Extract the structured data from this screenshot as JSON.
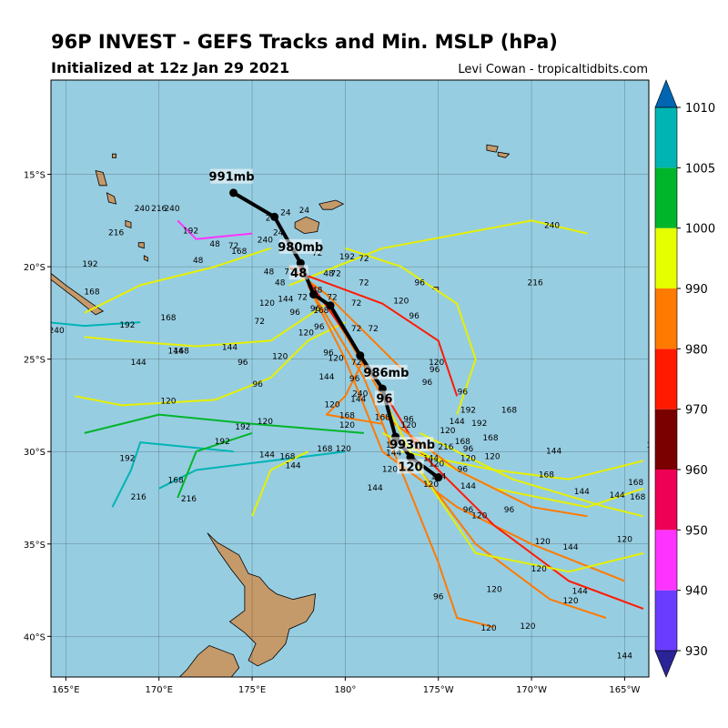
{
  "header": {
    "title": "96P INVEST - GEFS Tracks and Min. MSLP (hPa)",
    "subtitle": "Initialized at 12z Jan 29 2021",
    "credit": "Levi Cowan - tropicaltidbits.com"
  },
  "map": {
    "ocean_color": "#97cde1",
    "land_color": "#c59a6a",
    "lon_ticks": [
      "165°E",
      "170°E",
      "175°E",
      "180°",
      "175°W",
      "170°W",
      "165°W"
    ],
    "lat_ticks": [
      "15°S",
      "20°S",
      "25°S",
      "30°S",
      "35°S",
      "40°S"
    ]
  },
  "mean_track": {
    "points": [
      {
        "lon": 174.0,
        "lat": -16.0
      },
      {
        "lon": 176.2,
        "lat": -17.3
      },
      {
        "lon": 177.6,
        "lat": -19.8
      },
      {
        "lon": 178.3,
        "lat": -21.5
      },
      {
        "lon": 179.2,
        "lat": -22.1
      },
      {
        "lon": 180.8,
        "lat": -24.8
      },
      {
        "lon": 182.0,
        "lat": -26.6
      },
      {
        "lon": 182.7,
        "lat": -29.2
      },
      {
        "lon": 183.5,
        "lat": -30.3
      },
      {
        "lon": 185.0,
        "lat": -31.4
      }
    ],
    "labels": [
      {
        "text": "991mb",
        "lon": 173.9,
        "lat": -15.3
      },
      {
        "text": "980mb",
        "lon": 177.6,
        "lat": -19.1
      },
      {
        "text": "48",
        "lon": 177.5,
        "lat": -20.5
      },
      {
        "text": "986mb",
        "lon": 182.2,
        "lat": -25.9
      },
      {
        "text": "96",
        "lon": 182.1,
        "lat": -27.3
      },
      {
        "text": "993mb",
        "lon": 183.6,
        "lat": -29.8
      },
      {
        "text": "120",
        "lon": 183.5,
        "lat": -31.0
      }
    ]
  },
  "colorbar": {
    "levels": [
      "930",
      "940",
      "950",
      "960",
      "970",
      "980",
      "990",
      "1000",
      "1005",
      "1010"
    ],
    "colors": [
      "#2a2496",
      "#6a3cff",
      "#ff33ff",
      "#ee0055",
      "#7a0000",
      "#ff1a00",
      "#ff7a00",
      "#e6ff00",
      "#00b52a",
      "#00b4b4",
      "#0066b3"
    ]
  },
  "members": [
    {
      "color": "#e6f000",
      "hours": "216",
      "points": [
        [
          177,
          -21
        ],
        [
          182,
          -19
        ],
        [
          190,
          -17.5
        ],
        [
          193,
          -18.2
        ]
      ]
    },
    {
      "color": "#e6f000",
      "hours": "144",
      "points": [
        [
          179,
          -22
        ],
        [
          176,
          -24
        ],
        [
          172,
          -24.3
        ],
        [
          168,
          -24
        ],
        [
          166,
          -23.8
        ]
      ]
    },
    {
      "color": "#e6f000",
      "hours": "120",
      "points": [
        [
          180,
          -23
        ],
        [
          178,
          -24
        ],
        [
          176,
          -26
        ],
        [
          173,
          -27.2
        ],
        [
          168,
          -27.5
        ],
        [
          165.5,
          -27
        ]
      ]
    },
    {
      "color": "#e6f000",
      "hours": "192",
      "points": [
        [
          176,
          -19
        ],
        [
          173,
          -20
        ],
        [
          169,
          -21
        ],
        [
          166,
          -22.5
        ]
      ]
    },
    {
      "color": "#ff7a00",
      "hours": "144",
      "points": [
        [
          178,
          -21
        ],
        [
          180,
          -25
        ],
        [
          182,
          -30
        ],
        [
          186,
          -33
        ],
        [
          190,
          -35
        ],
        [
          195,
          -37
        ]
      ]
    },
    {
      "color": "#ff7a00",
      "hours": "120",
      "points": [
        [
          179,
          -22
        ],
        [
          182,
          -27
        ],
        [
          184,
          -31
        ],
        [
          187,
          -35
        ],
        [
          191,
          -38
        ],
        [
          194,
          -39
        ]
      ]
    },
    {
      "color": "#ff7a00",
      "hours": "96",
      "points": [
        [
          178,
          -21
        ],
        [
          181,
          -26
        ],
        [
          183,
          -31
        ],
        [
          185,
          -36
        ],
        [
          186,
          -39
        ],
        [
          188,
          -39.5
        ]
      ]
    },
    {
      "color": "#ff1a00",
      "hours": "120",
      "points": [
        [
          177.5,
          -20
        ],
        [
          181,
          -25
        ],
        [
          184,
          -30
        ],
        [
          188,
          -34
        ],
        [
          192,
          -37
        ],
        [
          196,
          -38.5
        ]
      ]
    },
    {
      "color": "#ff1a00",
      "hours": "96",
      "points": [
        [
          178,
          -20.5
        ],
        [
          182,
          -22
        ],
        [
          185,
          -24
        ],
        [
          186,
          -27
        ]
      ]
    },
    {
      "color": "#e6f000",
      "hours": "144",
      "points": [
        [
          183,
          -30
        ],
        [
          188,
          -31
        ],
        [
          192,
          -31.5
        ],
        [
          196,
          -30.5
        ]
      ]
    },
    {
      "color": "#e6f000",
      "hours": "168",
      "points": [
        [
          182,
          -29
        ],
        [
          188,
          -32
        ],
        [
          193,
          -33
        ],
        [
          196,
          -32
        ]
      ]
    },
    {
      "color": "#00b52a",
      "hours": "168",
      "points": [
        [
          181,
          -29
        ],
        [
          175,
          -28.5
        ],
        [
          170,
          -28
        ],
        [
          166,
          -29
        ]
      ]
    },
    {
      "color": "#00b4b4",
      "hours": "168",
      "points": [
        [
          180,
          -30
        ],
        [
          176,
          -30.5
        ],
        [
          172,
          -31
        ],
        [
          170,
          -32
        ]
      ]
    },
    {
      "color": "#00b4b4",
      "hours": "192",
      "points": [
        [
          174,
          -30
        ],
        [
          169,
          -29.5
        ],
        [
          168.5,
          -31
        ],
        [
          167.5,
          -33
        ]
      ]
    },
    {
      "color": "#00b52a",
      "hours": "192",
      "points": [
        [
          175,
          -29
        ],
        [
          172,
          -30
        ],
        [
          171,
          -32.5
        ]
      ]
    },
    {
      "color": "#e6f000",
      "hours": "144",
      "points": [
        [
          178,
          -30
        ],
        [
          176,
          -31
        ],
        [
          175,
          -33.5
        ]
      ]
    },
    {
      "color": "#ff7a00",
      "hours": "120",
      "points": [
        [
          181,
          -25
        ],
        [
          180,
          -27
        ],
        [
          179,
          -28
        ],
        [
          182,
          -28.5
        ]
      ]
    },
    {
      "color": "#e6f000",
      "hours": "168",
      "points": [
        [
          184,
          -29
        ],
        [
          189,
          -31.5
        ],
        [
          194,
          -33
        ],
        [
          196,
          -33.5
        ]
      ]
    },
    {
      "color": "#ff7a00",
      "hours": "216",
      "points": [
        [
          182,
          -28
        ],
        [
          186,
          -31
        ],
        [
          190,
          -33
        ],
        [
          193,
          -33.5
        ]
      ]
    },
    {
      "color": "#e6f000",
      "hours": "120",
      "points": [
        [
          182,
          -27
        ],
        [
          184,
          -31
        ],
        [
          187,
          -35.5
        ],
        [
          192,
          -36.5
        ],
        [
          196,
          -35.5
        ]
      ]
    },
    {
      "color": "#ff33ff",
      "hours": "192",
      "points": [
        [
          171,
          -17.5
        ],
        [
          172,
          -18.5
        ],
        [
          175,
          -18.2
        ]
      ]
    },
    {
      "color": "#00b4b4",
      "hours": "216",
      "points": [
        [
          169,
          -23
        ],
        [
          166,
          -23.2
        ],
        [
          164,
          -23
        ]
      ]
    },
    {
      "color": "#e6f000",
      "hours": "120",
      "points": [
        [
          180,
          -19
        ],
        [
          183,
          -20
        ],
        [
          186,
          -22
        ],
        [
          187,
          -25
        ],
        [
          186,
          -28
        ]
      ]
    },
    {
      "color": "#ff7a00",
      "hours": "72",
      "points": [
        [
          177,
          -20
        ],
        [
          179,
          -21.5
        ],
        [
          181,
          -23.5
        ],
        [
          183,
          -25.5
        ]
      ]
    }
  ],
  "member_labels": [
    {
      "t": "24",
      "lon": 176.0,
      "lat": -17.5
    },
    {
      "t": "24",
      "lon": 176.8,
      "lat": -17.2
    },
    {
      "t": "24",
      "lon": 177.8,
      "lat": -17.1
    },
    {
      "t": "24",
      "lon": 176.4,
      "lat": -18.3
    },
    {
      "t": "72",
      "lon": 174.0,
      "lat": -19.0
    },
    {
      "t": "168",
      "lon": 174.3,
      "lat": -19.3
    },
    {
      "t": "48",
      "lon": 173.0,
      "lat": -18.9
    },
    {
      "t": "240",
      "lon": 175.7,
      "lat": -18.7
    },
    {
      "t": "48",
      "lon": 175.9,
      "lat": -20.4
    },
    {
      "t": "48",
      "lon": 176.5,
      "lat": -21.0
    },
    {
      "t": "72",
      "lon": 177.0,
      "lat": -20.4
    },
    {
      "t": "72",
      "lon": 178.5,
      "lat": -19.4
    },
    {
      "t": "192",
      "lon": 180.1,
      "lat": -19.6
    },
    {
      "t": "72",
      "lon": 181.0,
      "lat": -19.7
    },
    {
      "t": "48",
      "lon": 179.1,
      "lat": -20.5
    },
    {
      "t": "72",
      "lon": 179.5,
      "lat": -20.5
    },
    {
      "t": "72",
      "lon": 181.0,
      "lat": -21.0
    },
    {
      "t": "48",
      "lon": 178.5,
      "lat": -21.4
    },
    {
      "t": "72",
      "lon": 179.3,
      "lat": -21.8
    },
    {
      "t": "72",
      "lon": 180.6,
      "lat": -22.1
    },
    {
      "t": "144",
      "lon": 176.8,
      "lat": -21.9
    },
    {
      "t": "120",
      "lon": 175.8,
      "lat": -22.1
    },
    {
      "t": "72",
      "lon": 177.7,
      "lat": -21.8
    },
    {
      "t": "96",
      "lon": 177.3,
      "lat": -22.6
    },
    {
      "t": "96",
      "lon": 178.4,
      "lat": -22.4
    },
    {
      "t": "168",
      "lon": 178.7,
      "lat": -22.5
    },
    {
      "t": "72",
      "lon": 175.4,
      "lat": -23.1
    },
    {
      "t": "120",
      "lon": 177.9,
      "lat": -23.7
    },
    {
      "t": "96",
      "lon": 178.6,
      "lat": -23.4
    },
    {
      "t": "72",
      "lon": 180.6,
      "lat": -23.5
    },
    {
      "t": "72",
      "lon": 181.5,
      "lat": -23.5
    },
    {
      "t": "96",
      "lon": 184.0,
      "lat": -21.0
    },
    {
      "t": "120",
      "lon": 183.0,
      "lat": -22.0
    },
    {
      "t": "96",
      "lon": 183.7,
      "lat": -22.8
    },
    {
      "t": "192",
      "lon": 166.3,
      "lat": -20.0
    },
    {
      "t": "168",
      "lon": 166.4,
      "lat": -21.5
    },
    {
      "t": "192",
      "lon": 168.3,
      "lat": -23.3
    },
    {
      "t": "168",
      "lon": 170.5,
      "lat": -22.9
    },
    {
      "t": "216",
      "lon": 167.7,
      "lat": -18.3
    },
    {
      "t": "240",
      "lon": 169.1,
      "lat": -17.0
    },
    {
      "t": "216",
      "lon": 170.0,
      "lat": -17.0
    },
    {
      "t": "240",
      "lon": 170.7,
      "lat": -17.0
    },
    {
      "t": "192",
      "lon": 171.7,
      "lat": -18.2
    },
    {
      "t": "48",
      "lon": 172.1,
      "lat": -19.8
    },
    {
      "t": "144",
      "lon": 170.9,
      "lat": -24.7
    },
    {
      "t": "168",
      "lon": 171.2,
      "lat": -24.7
    },
    {
      "t": "144",
      "lon": 168.9,
      "lat": -25.3
    },
    {
      "t": "144",
      "lon": 173.8,
      "lat": -24.5
    },
    {
      "t": "96",
      "lon": 174.5,
      "lat": -25.3
    },
    {
      "t": "120",
      "lon": 176.5,
      "lat": -25.0
    },
    {
      "t": "120",
      "lon": 179.5,
      "lat": -25.1
    },
    {
      "t": "96",
      "lon": 179.1,
      "lat": -24.8
    },
    {
      "t": "72",
      "lon": 180.6,
      "lat": -25.3
    },
    {
      "t": "144",
      "lon": 179.0,
      "lat": -26.1
    },
    {
      "t": "96",
      "lon": 180.5,
      "lat": -26.2
    },
    {
      "t": "96",
      "lon": 175.3,
      "lat": -26.5
    },
    {
      "t": "120",
      "lon": 170.5,
      "lat": -27.4
    },
    {
      "t": "120",
      "lon": 179.3,
      "lat": -27.6
    },
    {
      "t": "144",
      "lon": 180.7,
      "lat": -27.3
    },
    {
      "t": "240",
      "lon": 180.8,
      "lat": -27.0
    },
    {
      "t": "168",
      "lon": 180.1,
      "lat": -28.2
    },
    {
      "t": "120",
      "lon": 180.1,
      "lat": -28.7
    },
    {
      "t": "120",
      "lon": 175.7,
      "lat": -28.5
    },
    {
      "t": "192",
      "lon": 174.5,
      "lat": -28.8
    },
    {
      "t": "192",
      "lon": 173.4,
      "lat": -29.6
    },
    {
      "t": "144",
      "lon": 175.8,
      "lat": -30.3
    },
    {
      "t": "168",
      "lon": 176.9,
      "lat": -30.4
    },
    {
      "t": "144",
      "lon": 177.2,
      "lat": -30.9
    },
    {
      "t": "168",
      "lon": 178.9,
      "lat": -30.0
    },
    {
      "t": "120",
      "lon": 179.9,
      "lat": -30.0
    },
    {
      "t": "192",
      "lon": 168.3,
      "lat": -30.5
    },
    {
      "t": "168",
      "lon": 170.9,
      "lat": -31.7
    },
    {
      "t": "216",
      "lon": 171.6,
      "lat": -32.7
    },
    {
      "t": "216",
      "lon": 168.9,
      "lat": -32.6
    },
    {
      "t": "144",
      "lon": 181.6,
      "lat": -32.1
    },
    {
      "t": "168",
      "lon": 182.0,
      "lat": -28.3
    },
    {
      "t": "120",
      "lon": 182.6,
      "lat": -29.8
    },
    {
      "t": "144",
      "lon": 182.6,
      "lat": -30.2
    },
    {
      "t": "120",
      "lon": 182.4,
      "lat": -31.1
    },
    {
      "t": "96",
      "lon": 183.4,
      "lat": -28.4
    },
    {
      "t": "120",
      "lon": 183.4,
      "lat": -28.7
    },
    {
      "t": "144",
      "lon": 184.6,
      "lat": -30.5
    },
    {
      "t": "120",
      "lon": 184.9,
      "lat": -30.8
    },
    {
      "t": "144",
      "lon": 185.0,
      "lat": -31.5
    },
    {
      "t": "120",
      "lon": 184.6,
      "lat": -31.9
    },
    {
      "t": "96",
      "lon": 184.4,
      "lat": -26.4
    },
    {
      "t": "96",
      "lon": 184.8,
      "lat": -25.7
    },
    {
      "t": "120",
      "lon": 184.9,
      "lat": -25.3
    },
    {
      "t": "96",
      "lon": 186.3,
      "lat": -26.9
    },
    {
      "t": "192",
      "lon": 186.6,
      "lat": -27.9
    },
    {
      "t": "144",
      "lon": 186.0,
      "lat": -28.5
    },
    {
      "t": "120",
      "lon": 185.5,
      "lat": -29.0
    },
    {
      "t": "168",
      "lon": 186.3,
      "lat": -29.6
    },
    {
      "t": "216",
      "lon": 185.4,
      "lat": -29.9
    },
    {
      "t": "96",
      "lon": 186.6,
      "lat": -30.0
    },
    {
      "t": "120",
      "lon": 186.6,
      "lat": -30.5
    },
    {
      "t": "96",
      "lon": 186.3,
      "lat": -31.1
    },
    {
      "t": "144",
      "lon": 186.6,
      "lat": -32.0
    },
    {
      "t": "192",
      "lon": 187.2,
      "lat": -28.6
    },
    {
      "t": "168",
      "lon": 187.8,
      "lat": -29.4
    },
    {
      "t": "120",
      "lon": 187.9,
      "lat": -30.4
    },
    {
      "t": "168",
      "lon": 188.8,
      "lat": -27.9
    },
    {
      "t": "96",
      "lon": 186.6,
      "lat": -33.3
    },
    {
      "t": "120",
      "lon": 187.2,
      "lat": -33.6
    },
    {
      "t": "96",
      "lon": 188.8,
      "lat": -33.3
    },
    {
      "t": "144",
      "lon": 191.2,
      "lat": -30.1
    },
    {
      "t": "168",
      "lon": 190.8,
      "lat": -31.4
    },
    {
      "t": "144",
      "lon": 192.7,
      "lat": -32.3
    },
    {
      "t": "144",
      "lon": 194.6,
      "lat": -32.5
    },
    {
      "t": "168",
      "lon": 195.6,
      "lat": -31.8
    },
    {
      "t": "168",
      "lon": 195.7,
      "lat": -32.6
    },
    {
      "t": "192",
      "lon": 196.6,
      "lat": -29.8
    },
    {
      "t": "120",
      "lon": 190.6,
      "lat": -35.0
    },
    {
      "t": "144",
      "lon": 192.1,
      "lat": -35.3
    },
    {
      "t": "120",
      "lon": 195.0,
      "lat": -34.9
    },
    {
      "t": "120",
      "lon": 190.4,
      "lat": -36.5
    },
    {
      "t": "144",
      "lon": 192.6,
      "lat": -37.7
    },
    {
      "t": "120",
      "lon": 192.1,
      "lat": -38.2
    },
    {
      "t": "120",
      "lon": 188.0,
      "lat": -37.6
    },
    {
      "t": "96",
      "lon": 185.0,
      "lat": -38.0
    },
    {
      "t": "120",
      "lon": 187.7,
      "lat": -39.7
    },
    {
      "t": "120",
      "lon": 189.8,
      "lat": -39.6
    },
    {
      "t": "144",
      "lon": 195.0,
      "lat": -41.2
    },
    {
      "t": "216",
      "lon": 190.2,
      "lat": -21.0
    },
    {
      "t": "240",
      "lon": 191.1,
      "lat": -17.9
    },
    {
      "t": "240",
      "lon": 164.5,
      "lat": -23.6
    }
  ]
}
